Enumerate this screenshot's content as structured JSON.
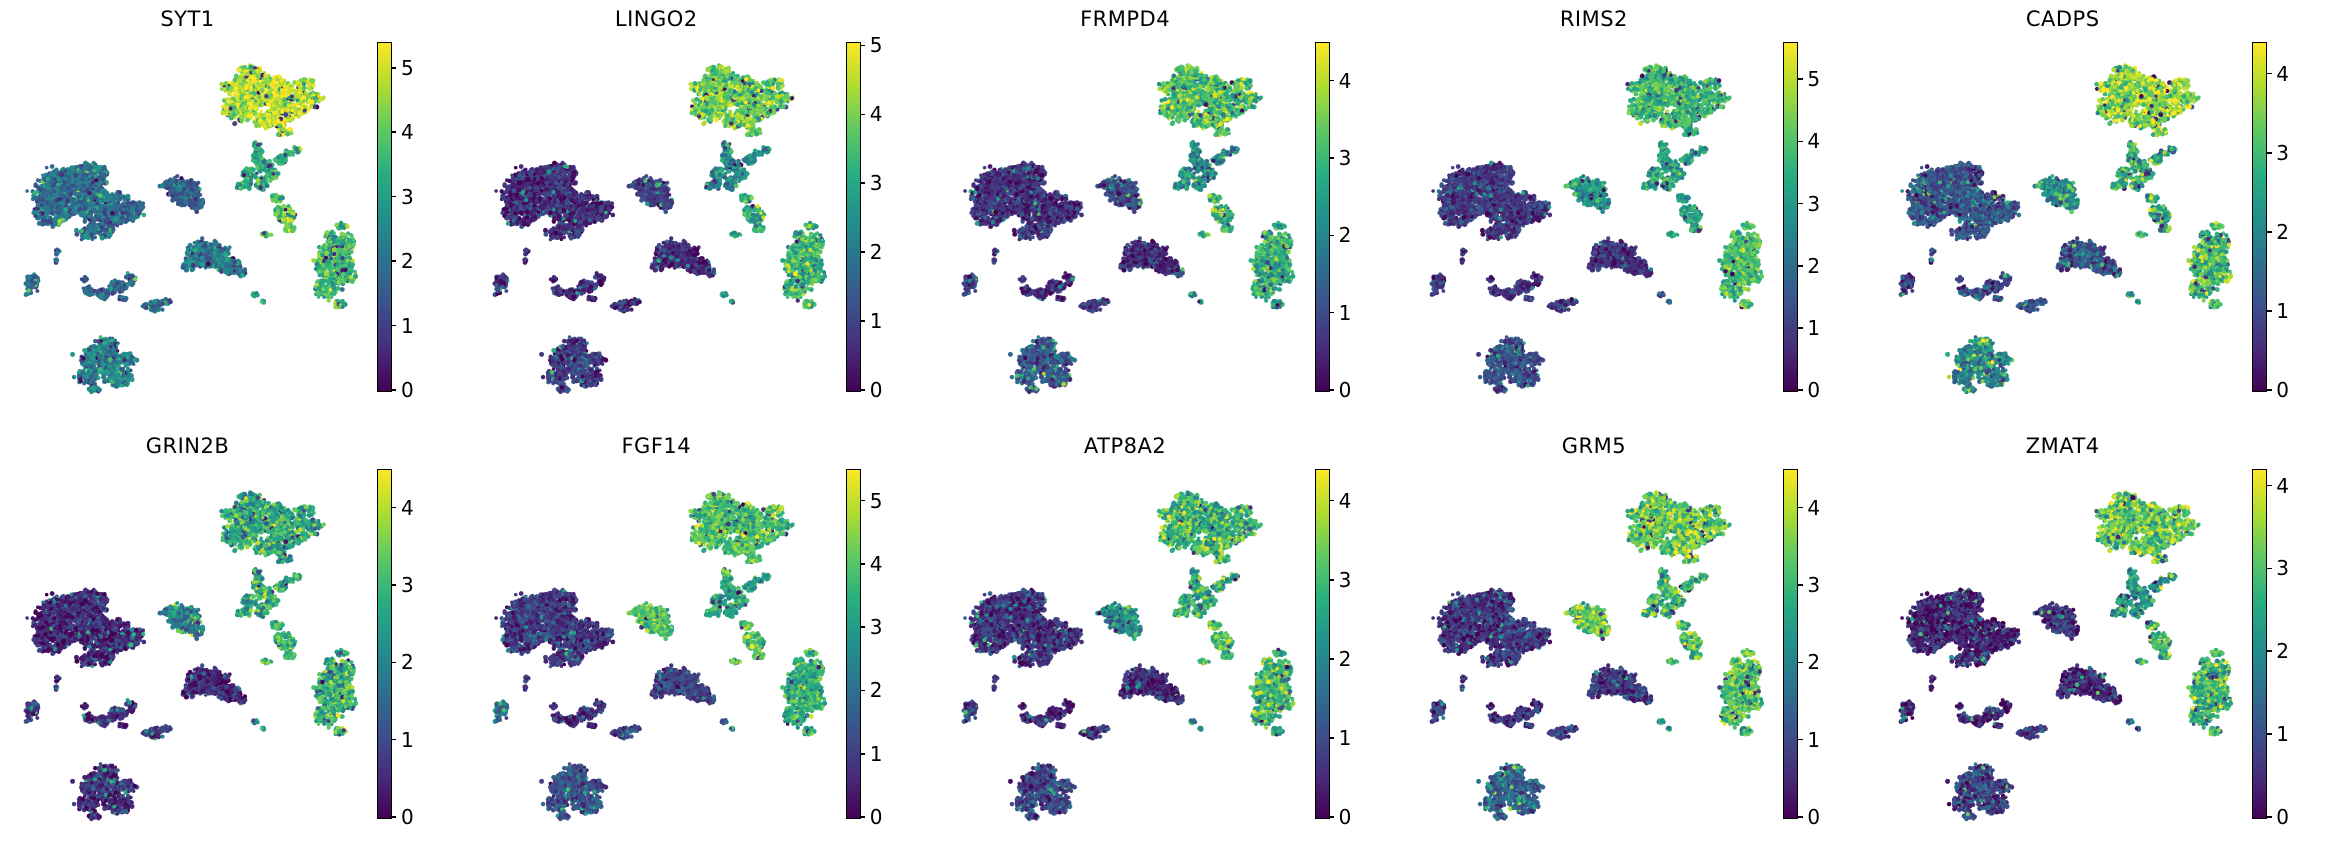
{
  "figure": {
    "kind": "umap-feature-plot-grid",
    "rows": 2,
    "cols": 5,
    "background": "#ffffff",
    "colormap_name": "viridis"
  },
  "chart_data": {
    "type": "scatter",
    "subtype": "single-cell embedding feature plots, one panel per gene, points colored by expression",
    "legend_position": "right-colorbar-per-panel",
    "grid": false,
    "axes_visible": false,
    "colormap": "viridis",
    "colormap_stops": [
      "#440154",
      "#472d7b",
      "#3b528b",
      "#2c728e",
      "#21918c",
      "#28ae80",
      "#5ec962",
      "#addc30",
      "#fde725"
    ],
    "panels": [
      {
        "title": "SYT1",
        "vmax": 5.4,
        "ticks": [
          0,
          1,
          2,
          3,
          4,
          5
        ],
        "expression": [
          4.8,
          1.9,
          1.6,
          2.2,
          3.3,
          4.0,
          3.7,
          1.8,
          1.8,
          2.0,
          2.4,
          3.0
        ]
      },
      {
        "title": "LINGO2",
        "vmax": 5.05,
        "ticks": [
          0,
          1,
          2,
          3,
          4,
          5
        ],
        "expression": [
          3.9,
          0.6,
          0.9,
          0.6,
          2.4,
          3.2,
          3.3,
          1.0,
          0.6,
          0.7,
          0.9,
          2.8
        ]
      },
      {
        "title": "FRMPD4",
        "vmax": 4.5,
        "ticks": [
          0,
          1,
          2,
          3,
          4
        ],
        "expression": [
          3.2,
          0.6,
          1.0,
          0.6,
          2.2,
          2.9,
          2.8,
          1.0,
          0.6,
          0.7,
          1.2,
          2.2
        ]
      },
      {
        "title": "RIMS2",
        "vmax": 5.6,
        "ticks": [
          0,
          1,
          2,
          3,
          4,
          5
        ],
        "expression": [
          3.7,
          0.9,
          3.0,
          0.8,
          3.2,
          3.2,
          3.9,
          1.0,
          0.8,
          1.0,
          1.3,
          1.5
        ]
      },
      {
        "title": "CADPS",
        "vmax": 4.4,
        "ticks": [
          0,
          1,
          2,
          3,
          4
        ],
        "expression": [
          3.7,
          1.1,
          2.2,
          1.0,
          2.7,
          2.8,
          3.0,
          0.9,
          0.9,
          1.2,
          2.0,
          2.2
        ]
      },
      {
        "title": "GRIN2B",
        "vmax": 4.5,
        "ticks": [
          0,
          1,
          2,
          3,
          4
        ],
        "expression": [
          2.8,
          0.5,
          2.0,
          0.5,
          2.8,
          3.0,
          2.9,
          0.8,
          0.5,
          0.8,
          0.6,
          2.0
        ]
      },
      {
        "title": "FGF14",
        "vmax": 5.5,
        "ticks": [
          0,
          1,
          2,
          3,
          4,
          5
        ],
        "expression": [
          3.9,
          0.9,
          3.9,
          1.1,
          3.3,
          4.0,
          3.4,
          1.8,
          0.8,
          1.0,
          1.3,
          2.0
        ]
      },
      {
        "title": "ATP8A2",
        "vmax": 4.4,
        "ticks": [
          0,
          1,
          2,
          3,
          4
        ],
        "expression": [
          2.9,
          0.6,
          2.2,
          0.5,
          2.7,
          3.2,
          2.9,
          0.8,
          0.5,
          0.8,
          0.9,
          2.0
        ]
      },
      {
        "title": "GRM5",
        "vmax": 4.5,
        "ticks": [
          0,
          1,
          2,
          3,
          4
        ],
        "expression": [
          3.4,
          0.7,
          3.4,
          0.7,
          3.0,
          3.3,
          3.2,
          0.8,
          0.6,
          0.8,
          1.4,
          2.2
        ]
      },
      {
        "title": "ZMAT4",
        "vmax": 4.2,
        "ticks": [
          0,
          1,
          2,
          3,
          4
        ],
        "expression": [
          3.2,
          0.4,
          0.6,
          0.5,
          2.2,
          2.7,
          2.8,
          0.4,
          0.4,
          0.5,
          0.8,
          1.5
        ]
      }
    ],
    "embedding_clusters": [
      {
        "id": "cluster-top-large",
        "blobs": [
          [
            258,
            75,
            30,
            16,
            470
          ],
          [
            292,
            88,
            22,
            13,
            250
          ],
          [
            240,
            95,
            18,
            11,
            150
          ],
          [
            272,
            105,
            20,
            9,
            130
          ],
          [
            305,
            70,
            10,
            6,
            40
          ],
          [
            250,
            58,
            12,
            6,
            60
          ],
          [
            316,
            83,
            8,
            5,
            30
          ],
          [
            284,
            118,
            7,
            4,
            25
          ]
        ]
      },
      {
        "id": "cluster-left-large",
        "blobs": [
          [
            70,
            178,
            34,
            22,
            820
          ],
          [
            105,
            195,
            25,
            18,
            400
          ],
          [
            50,
            200,
            16,
            12,
            170
          ],
          [
            88,
            160,
            20,
            10,
            170
          ],
          [
            125,
            200,
            14,
            8,
            110
          ],
          [
            58,
            165,
            12,
            8,
            85
          ],
          [
            95,
            218,
            18,
            7,
            85
          ],
          [
            136,
            193,
            8,
            5,
            40
          ]
        ]
      },
      {
        "id": "cluster-midleft-small",
        "blobs": [
          [
            185,
            178,
            15,
            12,
            250
          ],
          [
            173,
            170,
            8,
            6,
            50
          ],
          [
            196,
            189,
            8,
            6,
            40
          ],
          [
            164,
            172,
            4,
            2,
            10
          ]
        ]
      },
      {
        "id": "cluster-center",
        "blobs": [
          [
            207,
            240,
            20,
            13,
            320
          ],
          [
            228,
            252,
            12,
            8,
            90
          ],
          [
            190,
            250,
            8,
            6,
            40
          ],
          [
            241,
            258,
            6,
            4,
            25
          ]
        ]
      },
      {
        "id": "cluster-cross",
        "blobs": [
          [
            258,
            143,
            6,
            8,
            55
          ],
          [
            265,
            152,
            8,
            6,
            55
          ],
          [
            250,
            160,
            7,
            6,
            45
          ],
          [
            272,
            160,
            6,
            5,
            38
          ],
          [
            262,
            170,
            6,
            6,
            42
          ],
          [
            246,
            170,
            5,
            4,
            22
          ],
          [
            280,
            146,
            7,
            4,
            28
          ],
          [
            288,
            140,
            5,
            3,
            18
          ],
          [
            240,
            172,
            4,
            3,
            14
          ],
          [
            257,
            132,
            4,
            4,
            18
          ],
          [
            296,
            136,
            4,
            3,
            14
          ]
        ]
      },
      {
        "id": "cluster-below-cross",
        "blobs": [
          [
            285,
            200,
            10,
            8,
            100
          ],
          [
            277,
            184,
            6,
            4,
            28
          ],
          [
            290,
            214,
            6,
            4,
            24
          ],
          [
            266,
            221,
            6,
            2,
            16
          ]
        ]
      },
      {
        "id": "cluster-right",
        "blobs": [
          [
            335,
            250,
            17,
            20,
            360
          ],
          [
            345,
            228,
            10,
            8,
            85
          ],
          [
            326,
            275,
            12,
            9,
            85
          ],
          [
            348,
            262,
            8,
            7,
            48
          ],
          [
            330,
            222,
            6,
            5,
            28
          ],
          [
            340,
            290,
            6,
            4,
            22
          ],
          [
            342,
            212,
            5,
            4,
            18
          ]
        ]
      },
      {
        "id": "cluster-farleft-small",
        "blobs": [
          [
            32,
            267,
            6,
            8,
            60
          ],
          [
            28,
            278,
            3,
            3,
            12
          ]
        ]
      },
      {
        "id": "cluster-chain",
        "blobs": [
          [
            90,
            277,
            5,
            5,
            28
          ],
          [
            103,
            280,
            6,
            5,
            34
          ],
          [
            117,
            272,
            9,
            7,
            65
          ],
          [
            130,
            266,
            6,
            5,
            28
          ],
          [
            123,
            284,
            4,
            3,
            14
          ],
          [
            84,
            265,
            3,
            3,
            9
          ],
          [
            58,
            238,
            3,
            3,
            9
          ],
          [
            55,
            246,
            2,
            2,
            6
          ]
        ]
      },
      {
        "id": "cluster-small-line",
        "blobs": [
          [
            153,
            292,
            10,
            5,
            65
          ],
          [
            166,
            288,
            5,
            3,
            16
          ]
        ]
      },
      {
        "id": "cluster-bottom",
        "blobs": [
          [
            100,
            345,
            18,
            13,
            260
          ],
          [
            118,
            362,
            14,
            10,
            140
          ],
          [
            88,
            362,
            10,
            8,
            75
          ],
          [
            108,
            330,
            10,
            6,
            55
          ],
          [
            128,
            345,
            8,
            6,
            42
          ],
          [
            95,
            375,
            7,
            4,
            24
          ]
        ]
      },
      {
        "id": "cluster-satellites",
        "blobs": [
          [
            255,
            280,
            3,
            2,
            10
          ],
          [
            262,
            288,
            2,
            2,
            6
          ]
        ]
      }
    ]
  }
}
